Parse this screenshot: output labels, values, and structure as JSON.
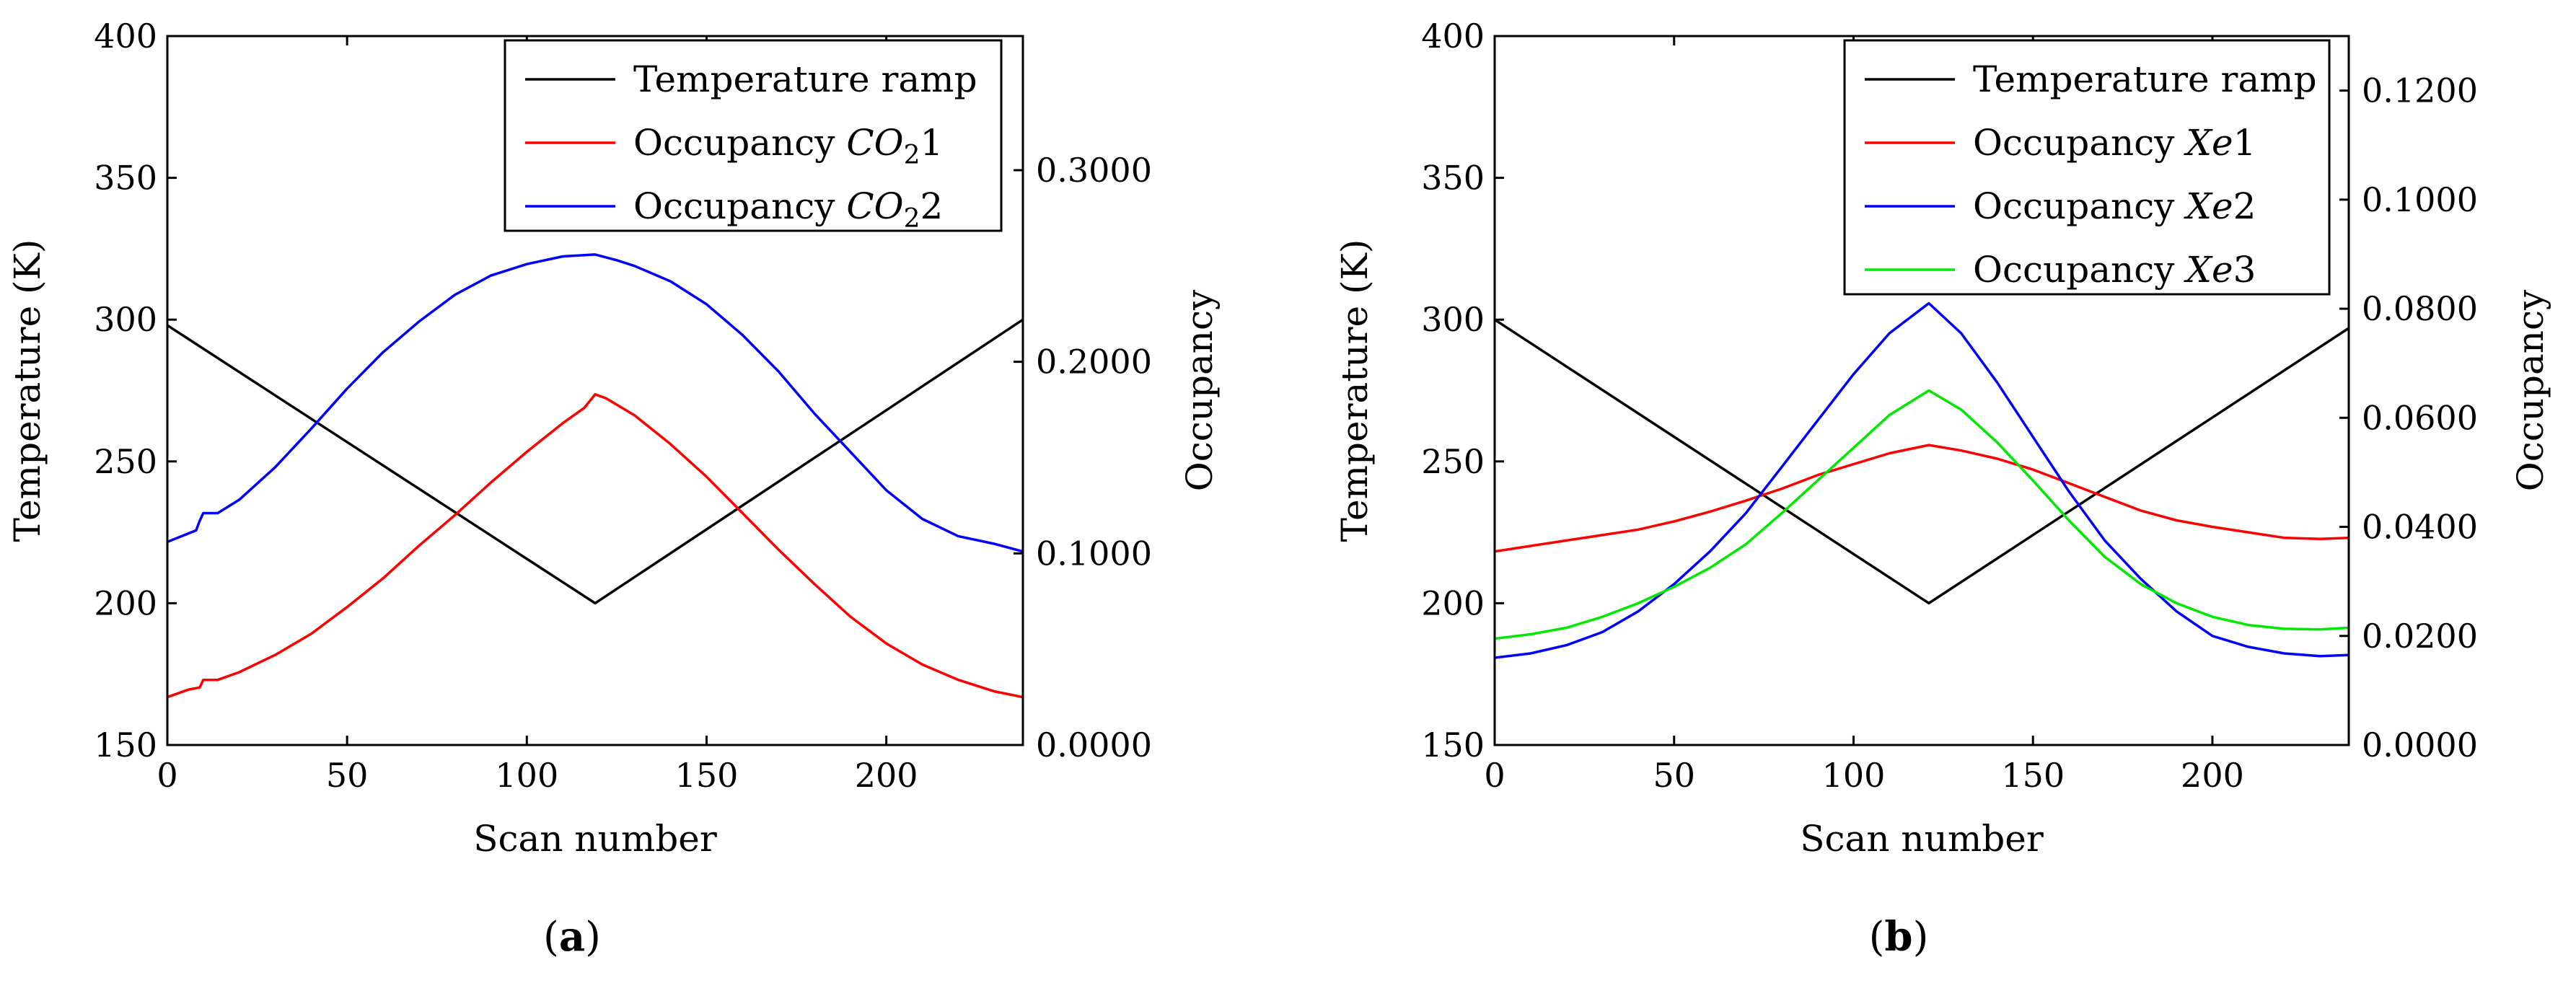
{
  "chart_data": [
    {
      "type": "line",
      "panel_label": "a",
      "xlabel": "Scan number",
      "ylabel_left": "Temperature (K)",
      "ylabel_right": "Occupancy",
      "xlim": [
        0,
        238
      ],
      "ylim_left": [
        150,
        400
      ],
      "ylim_right": [
        0.0,
        0.37
      ],
      "x_ticks": [
        "0",
        "50",
        "100",
        "150",
        "200"
      ],
      "x_tick_values": [
        0,
        50,
        100,
        150,
        200
      ],
      "y_left_ticks": [
        "150",
        "200",
        "250",
        "300",
        "350",
        "400"
      ],
      "y_left_tick_values": [
        150,
        200,
        250,
        300,
        350,
        400
      ],
      "y_right_ticks": [
        "0.0000",
        "0.1000",
        "0.2000",
        "0.3000"
      ],
      "y_right_tick_values": [
        0.0,
        0.1,
        0.2,
        0.3
      ],
      "legend_position": "top-right",
      "series": [
        {
          "name": "Temperature ramp",
          "legend_prefix": "Temperature ramp",
          "legend_italic": "",
          "legend_sub": "",
          "legend_suffix": "",
          "axis": "left",
          "color": "#000000",
          "x": [
            0,
            119,
            238
          ],
          "y": [
            298,
            200,
            300
          ]
        },
        {
          "name": "Occupancy CO21",
          "legend_prefix": "Occupancy ",
          "legend_italic": "CO",
          "legend_sub": "2",
          "legend_suffix": "1",
          "axis": "right",
          "color": "#ff0000",
          "x": [
            0,
            3,
            6,
            9,
            10,
            14,
            20,
            30,
            40,
            50,
            60,
            70,
            80,
            90,
            100,
            110,
            116,
            119,
            122,
            130,
            140,
            150,
            160,
            170,
            180,
            190,
            200,
            210,
            220,
            230,
            238
          ],
          "y": [
            0.025,
            0.027,
            0.029,
            0.03,
            0.034,
            0.034,
            0.038,
            0.047,
            0.058,
            0.072,
            0.087,
            0.104,
            0.12,
            0.137,
            0.153,
            0.168,
            0.176,
            0.183,
            0.181,
            0.172,
            0.157,
            0.14,
            0.121,
            0.102,
            0.084,
            0.067,
            0.053,
            0.042,
            0.034,
            0.028,
            0.025
          ]
        },
        {
          "name": "Occupancy CO22",
          "legend_prefix": "Occupancy ",
          "legend_italic": "CO",
          "legend_sub": "2",
          "legend_suffix": "2",
          "axis": "right",
          "color": "#0000ff",
          "x": [
            0,
            4,
            8,
            9,
            10,
            14,
            20,
            30,
            40,
            50,
            60,
            70,
            80,
            90,
            100,
            110,
            119,
            125,
            130,
            140,
            150,
            160,
            170,
            180,
            190,
            200,
            210,
            220,
            230,
            238
          ],
          "y": [
            0.106,
            0.109,
            0.112,
            0.117,
            0.121,
            0.121,
            0.128,
            0.145,
            0.165,
            0.186,
            0.205,
            0.221,
            0.235,
            0.245,
            0.251,
            0.255,
            0.256,
            0.253,
            0.25,
            0.242,
            0.23,
            0.214,
            0.195,
            0.173,
            0.153,
            0.133,
            0.118,
            0.109,
            0.105,
            0.101
          ]
        }
      ]
    },
    {
      "type": "line",
      "panel_label": "b",
      "xlabel": "Scan number",
      "ylabel_left": "Temperature (K)",
      "ylabel_right": "Occupancy",
      "xlim": [
        0,
        238
      ],
      "ylim_left": [
        150,
        400
      ],
      "ylim_right": [
        0.0,
        0.13
      ],
      "x_ticks": [
        "0",
        "50",
        "100",
        "150",
        "200"
      ],
      "x_tick_values": [
        0,
        50,
        100,
        150,
        200
      ],
      "y_left_ticks": [
        "150",
        "200",
        "250",
        "300",
        "350",
        "400"
      ],
      "y_left_tick_values": [
        150,
        200,
        250,
        300,
        350,
        400
      ],
      "y_right_ticks": [
        "0.0000",
        "0.0200",
        "0.0400",
        "0.0600",
        "0.0800",
        "0.1000",
        "0.1200"
      ],
      "y_right_tick_values": [
        0.0,
        0.02,
        0.04,
        0.06,
        0.08,
        0.1,
        0.12
      ],
      "legend_position": "top-right",
      "series": [
        {
          "name": "Temperature ramp",
          "legend_prefix": "Temperature ramp",
          "legend_italic": "",
          "legend_sub": "",
          "legend_suffix": "",
          "axis": "left",
          "color": "#000000",
          "x": [
            0,
            121,
            238
          ],
          "y": [
            300,
            200,
            297
          ]
        },
        {
          "name": "Occupancy Xe1",
          "legend_prefix": "Occupancy ",
          "legend_italic": "Xe",
          "legend_sub": "",
          "legend_suffix": "1",
          "axis": "right",
          "color": "#ff0000",
          "x": [
            0,
            10,
            20,
            30,
            40,
            50,
            60,
            70,
            80,
            90,
            100,
            110,
            121,
            130,
            140,
            150,
            160,
            170,
            180,
            190,
            200,
            210,
            220,
            230,
            238
          ],
          "y": [
            0.0355,
            0.0365,
            0.0375,
            0.0385,
            0.0395,
            0.041,
            0.0428,
            0.0448,
            0.047,
            0.0495,
            0.0515,
            0.0535,
            0.055,
            0.054,
            0.0525,
            0.0505,
            0.048,
            0.0455,
            0.043,
            0.0412,
            0.04,
            0.039,
            0.038,
            0.0378,
            0.038
          ]
        },
        {
          "name": "Occupancy Xe2",
          "legend_prefix": "Occupancy ",
          "legend_italic": "Xe",
          "legend_sub": "",
          "legend_suffix": "2",
          "axis": "right",
          "color": "#0000ff",
          "x": [
            0,
            10,
            20,
            30,
            40,
            50,
            60,
            70,
            80,
            90,
            100,
            110,
            121,
            130,
            140,
            150,
            160,
            170,
            180,
            190,
            200,
            210,
            220,
            230,
            238
          ],
          "y": [
            0.016,
            0.0168,
            0.0183,
            0.0207,
            0.0245,
            0.0295,
            0.0355,
            0.0425,
            0.051,
            0.0595,
            0.068,
            0.0755,
            0.081,
            0.0755,
            0.0665,
            0.0565,
            0.0465,
            0.0375,
            0.0305,
            0.0245,
            0.02,
            0.018,
            0.0168,
            0.0163,
            0.0165
          ]
        },
        {
          "name": "Occupancy Xe3",
          "legend_prefix": "Occupancy ",
          "legend_italic": "Xe",
          "legend_sub": "",
          "legend_suffix": "3",
          "axis": "right",
          "color": "#00e800",
          "x": [
            0,
            10,
            20,
            30,
            40,
            50,
            60,
            70,
            80,
            90,
            100,
            110,
            121,
            130,
            140,
            150,
            160,
            170,
            180,
            190,
            200,
            210,
            220,
            230,
            238
          ],
          "y": [
            0.0195,
            0.0203,
            0.0215,
            0.0235,
            0.026,
            0.029,
            0.0325,
            0.0368,
            0.0425,
            0.0485,
            0.0545,
            0.0605,
            0.065,
            0.0615,
            0.0555,
            0.0485,
            0.0412,
            0.0345,
            0.0295,
            0.026,
            0.0235,
            0.022,
            0.0213,
            0.0212,
            0.0215
          ]
        }
      ]
    }
  ]
}
